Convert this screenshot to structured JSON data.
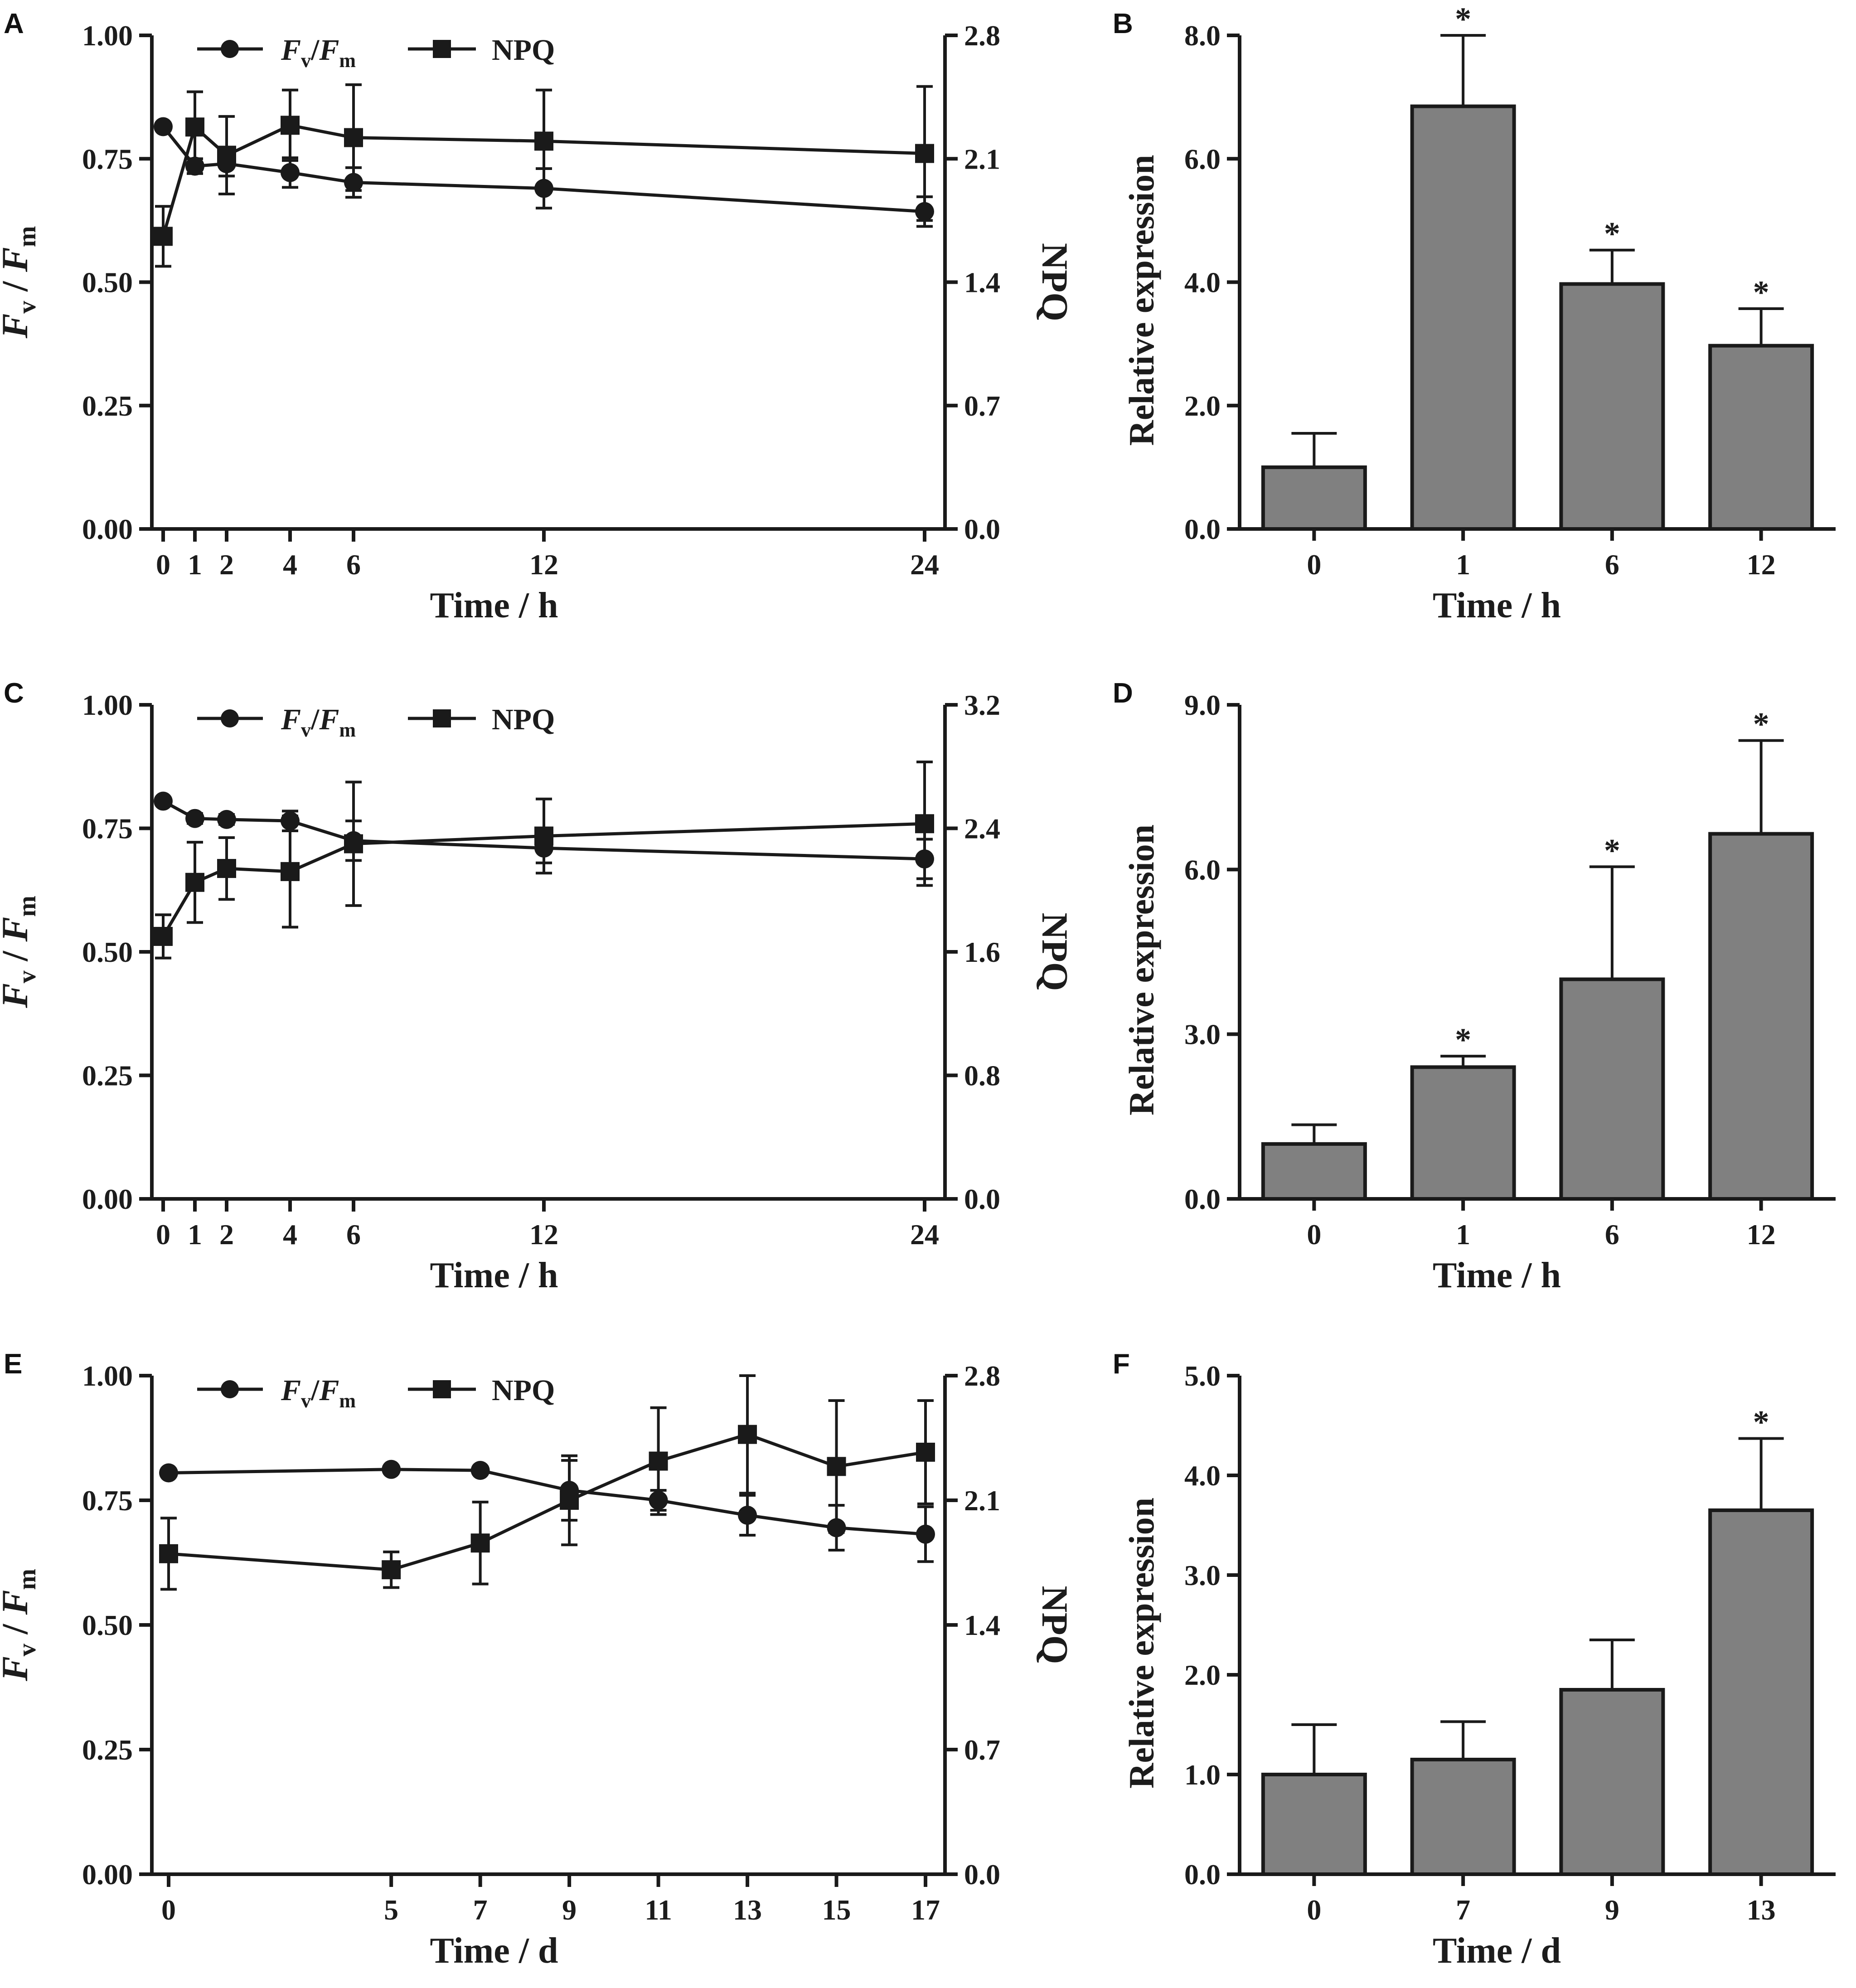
{
  "chart_data": [
    {
      "panel": "A",
      "type": "line",
      "x": [
        0,
        1,
        2,
        4,
        6,
        12,
        24
      ],
      "x_ticks": [
        "0",
        "1",
        "2",
        "4",
        "6",
        "12",
        "24"
      ],
      "xlabel": "Time / h",
      "ylabel_left": {
        "main": "F",
        "sub1": "v",
        "mid": " / F",
        "sub2": "m"
      },
      "ylabel_right": "NPQ",
      "left_ticks": [
        "0.00",
        "0.25",
        "0.50",
        "0.75",
        "1.00"
      ],
      "right_ticks": [
        "0.0",
        "0.7",
        "1.4",
        "2.1",
        "2.8"
      ],
      "ylim_left": [
        0,
        1.0
      ],
      "ylim_right": [
        0,
        2.8
      ],
      "legend": {
        "fvfm_main": "F",
        "fvfm_sub1": "v",
        "fvfm_mid": "/F",
        "fvfm_sub2": "m",
        "npq": "NPQ"
      },
      "series": [
        {
          "name": "Fv/Fm",
          "axis": "left",
          "marker": "circle",
          "values": [
            0.815,
            0.735,
            0.74,
            0.722,
            0.702,
            0.69,
            0.643
          ],
          "err": [
            0.005,
            0.015,
            0.025,
            0.03,
            0.03,
            0.04,
            0.03
          ]
        },
        {
          "name": "NPQ",
          "axis": "right",
          "marker": "square",
          "values": [
            1.66,
            2.28,
            2.12,
            2.29,
            2.22,
            2.2,
            2.13
          ],
          "err": [
            0.17,
            0.2,
            0.22,
            0.2,
            0.3,
            0.29,
            0.38
          ]
        }
      ]
    },
    {
      "panel": "B",
      "type": "bar",
      "categories": [
        "0",
        "1",
        "6",
        "12"
      ],
      "values": [
        1.0,
        6.85,
        3.97,
        2.97
      ],
      "err": [
        0.55,
        1.15,
        0.55,
        0.6
      ],
      "significant": [
        false,
        true,
        true,
        true
      ],
      "sig_mark": "*",
      "ylabel": "Relative expression",
      "xlabel": "Time / h",
      "y_ticks": [
        "0.0",
        "2.0",
        "4.0",
        "6.0",
        "8.0"
      ],
      "ylim": [
        0,
        8.0
      ]
    },
    {
      "panel": "C",
      "type": "line",
      "x": [
        0,
        1,
        2,
        4,
        6,
        12,
        24
      ],
      "x_ticks": [
        "0",
        "1",
        "2",
        "4",
        "6",
        "12",
        "24"
      ],
      "xlabel": "Time / h",
      "ylabel_left": {
        "main": "F",
        "sub1": "v",
        "mid": " / F",
        "sub2": "m"
      },
      "ylabel_right": "NPQ",
      "left_ticks": [
        "0.00",
        "0.25",
        "0.50",
        "0.75",
        "1.00"
      ],
      "right_ticks": [
        "0.0",
        "0.8",
        "1.6",
        "2.4",
        "3.2"
      ],
      "ylim_left": [
        0,
        1.0
      ],
      "ylim_right": [
        0,
        3.2
      ],
      "legend": {
        "fvfm_main": "F",
        "fvfm_sub1": "v",
        "fvfm_mid": "/F",
        "fvfm_sub2": "m",
        "npq": "NPQ"
      },
      "series": [
        {
          "name": "Fv/Fm",
          "axis": "left",
          "marker": "circle",
          "values": [
            0.805,
            0.77,
            0.768,
            0.765,
            0.725,
            0.71,
            0.688
          ],
          "err": [
            0.005,
            0.01,
            0.01,
            0.02,
            0.04,
            0.03,
            0.04
          ]
        },
        {
          "name": "NPQ",
          "axis": "right",
          "marker": "square",
          "values": [
            1.7,
            2.05,
            2.14,
            2.12,
            2.3,
            2.35,
            2.43
          ],
          "err": [
            0.14,
            0.26,
            0.2,
            0.36,
            0.4,
            0.24,
            0.4
          ]
        }
      ]
    },
    {
      "panel": "D",
      "type": "bar",
      "categories": [
        "0",
        "1",
        "6",
        "12"
      ],
      "values": [
        1.0,
        2.4,
        4.0,
        6.65
      ],
      "err": [
        0.35,
        0.2,
        2.05,
        1.7
      ],
      "significant": [
        false,
        true,
        true,
        true
      ],
      "sig_mark": "*",
      "ylabel": "Relative expression",
      "xlabel": "Time / h",
      "y_ticks": [
        "0.0",
        "3.0",
        "6.0",
        "9.0"
      ],
      "ylim": [
        0,
        9.0
      ]
    },
    {
      "panel": "E",
      "type": "line",
      "x": [
        0,
        5,
        7,
        9,
        11,
        13,
        15,
        17
      ],
      "x_ticks": [
        "0",
        "5",
        "7",
        "9",
        "11",
        "13",
        "15",
        "17"
      ],
      "xlabel": "Time / d",
      "ylabel_left": {
        "main": "F",
        "sub1": "v",
        "mid": " / F",
        "sub2": "m"
      },
      "ylabel_right": "NPQ",
      "left_ticks": [
        "0.00",
        "0.25",
        "0.50",
        "0.75",
        "1.00"
      ],
      "right_ticks": [
        "0.0",
        "0.7",
        "1.4",
        "2.1",
        "2.8"
      ],
      "ylim_left": [
        0,
        1.0
      ],
      "ylim_right": [
        0,
        2.8
      ],
      "legend": {
        "fvfm_main": "F",
        "fvfm_sub1": "v",
        "fvfm_mid": "/F",
        "fvfm_sub2": "m",
        "npq": "NPQ"
      },
      "series": [
        {
          "name": "Fv/Fm",
          "axis": "left",
          "marker": "circle",
          "values": [
            0.805,
            0.812,
            0.81,
            0.77,
            0.75,
            0.72,
            0.695,
            0.682
          ],
          "err": [
            0.005,
            0.005,
            0.005,
            0.06,
            0.02,
            0.04,
            0.045,
            0.055
          ]
        },
        {
          "name": "NPQ",
          "axis": "right",
          "marker": "square",
          "values": [
            1.8,
            1.71,
            1.86,
            2.1,
            2.32,
            2.47,
            2.29,
            2.37
          ],
          "err": [
            0.2,
            0.1,
            0.23,
            0.25,
            0.3,
            0.33,
            0.37,
            0.29
          ]
        }
      ]
    },
    {
      "panel": "F",
      "type": "bar",
      "categories": [
        "0",
        "7",
        "9",
        "13"
      ],
      "values": [
        1.0,
        1.15,
        1.85,
        3.65
      ],
      "err": [
        0.5,
        0.38,
        0.5,
        0.72
      ],
      "significant": [
        false,
        false,
        false,
        true
      ],
      "sig_mark": "*",
      "ylabel": "Relative expression",
      "xlabel": "Time / d",
      "y_ticks": [
        "0.0",
        "1.0",
        "2.0",
        "3.0",
        "4.0",
        "5.0"
      ],
      "ylim": [
        0,
        5.0
      ]
    }
  ]
}
